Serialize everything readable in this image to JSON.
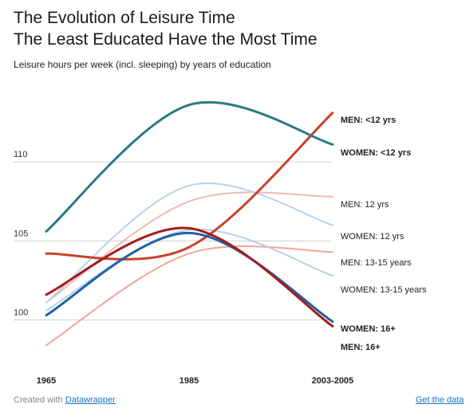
{
  "header": {
    "title": "The Evolution of Leisure Time",
    "subtitle": "The Least Educated Have the Most Time",
    "intro": "Leisure hours per week (incl. sleeping) by years of education"
  },
  "footer": {
    "created_with": "Created with",
    "tool_link": "Datawrapper",
    "data_link": "Get the data"
  },
  "chart_data": {
    "type": "line",
    "x": [
      "1965",
      "1985",
      "2003-2005"
    ],
    "yticks": [
      100,
      105,
      110
    ],
    "ylim": [
      97.3,
      115.2
    ],
    "grid": true,
    "series": [
      {
        "name": "MEN: <12 yrs",
        "values": [
          104.2,
          104.6,
          113.1
        ],
        "color": "#c8432b",
        "bold": true
      },
      {
        "name": "WOMEN: <12 yrs",
        "values": [
          105.6,
          113.6,
          111.1
        ],
        "color": "#2a7a84",
        "bold": true
      },
      {
        "name": "MEN: 12 yrs",
        "values": [
          101.1,
          107.5,
          107.8
        ],
        "color": "#f2b9ae",
        "bold": false
      },
      {
        "name": "WOMEN: 12 yrs",
        "values": [
          101.1,
          108.5,
          106.0
        ],
        "color": "#b8d1e8",
        "bold": false
      },
      {
        "name": "MEN: 13-15 years",
        "values": [
          98.4,
          104.2,
          104.3
        ],
        "color": "#f0a59a",
        "bold": false
      },
      {
        "name": "WOMEN: 13-15 years",
        "values": [
          100.6,
          105.7,
          102.8
        ],
        "color": "#b8d1e8",
        "bold": false
      },
      {
        "name": "WOMEN: 16+",
        "values": [
          100.3,
          105.5,
          99.9
        ],
        "color": "#1f5fa8",
        "bold": true
      },
      {
        "name": "MEN: 16+",
        "values": [
          101.6,
          105.8,
          99.6
        ],
        "color": "#a51c1c",
        "bold": true
      }
    ]
  }
}
